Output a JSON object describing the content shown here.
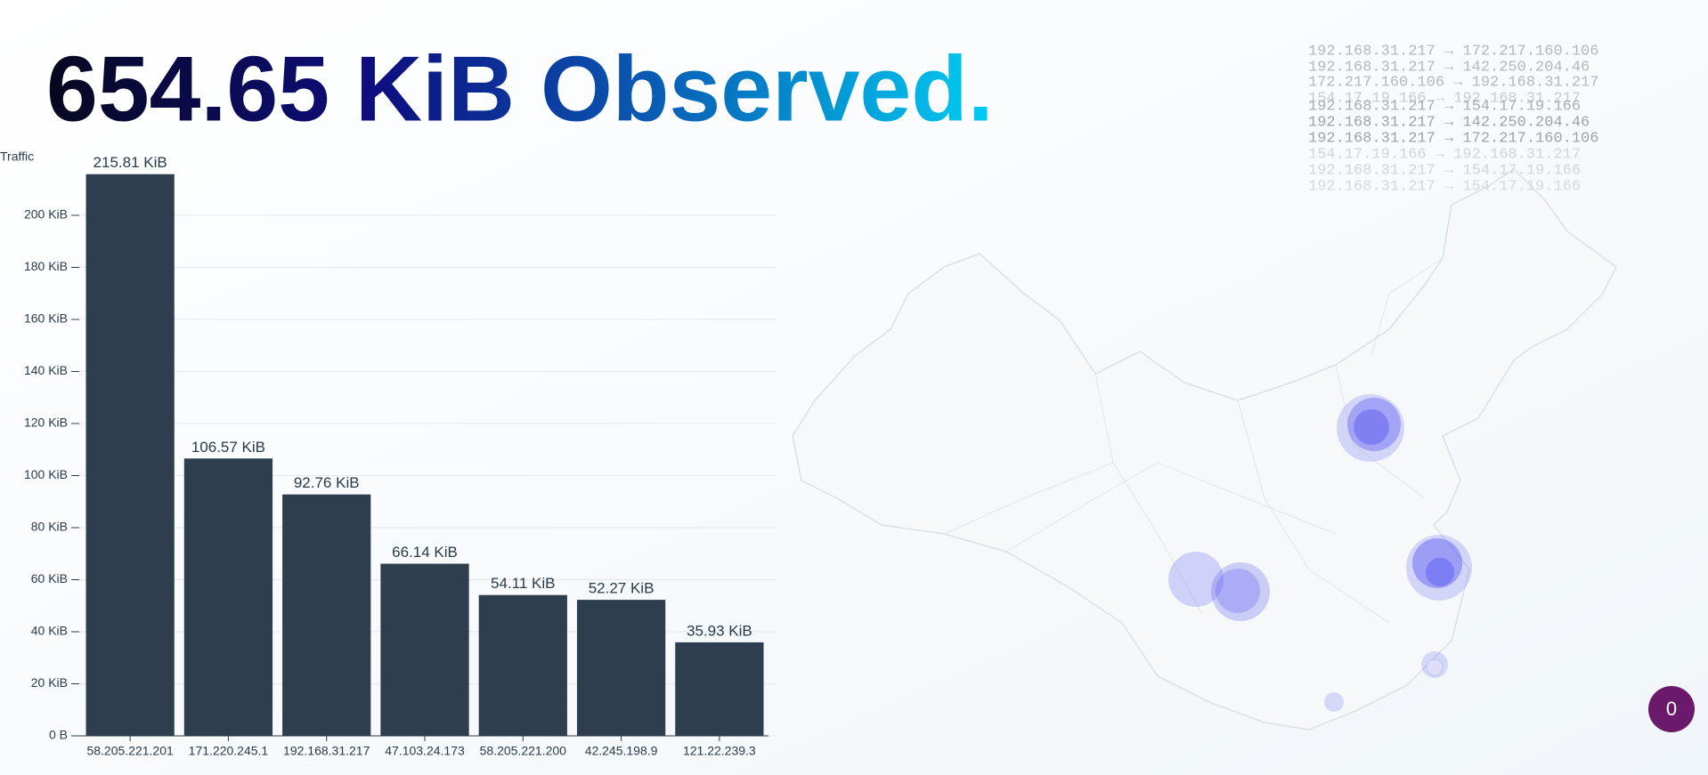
{
  "header": {
    "title": "654.65 KiB Observed."
  },
  "chart_data": {
    "type": "bar",
    "y_label": "Traffic",
    "categories": [
      "58.205.221.201",
      "171.220.245.1",
      "192.168.31.217",
      "47.103.24.173",
      "58.205.221.200",
      "42.245.198.9",
      "121.22.239.3"
    ],
    "values": [
      215.81,
      106.57,
      92.76,
      66.14,
      54.11,
      52.27,
      35.93
    ],
    "value_labels": [
      "215.81 KiB",
      "106.57 KiB",
      "92.76 KiB",
      "66.14 KiB",
      "54.11 KiB",
      "52.27 KiB",
      "35.93 KiB"
    ],
    "color": "#2b3a4a",
    "ylim": [
      0,
      220
    ],
    "yticks": [
      {
        "value": 0,
        "label": "0 B"
      },
      {
        "value": 20,
        "label": "20 KiB"
      },
      {
        "value": 40,
        "label": "40 KiB"
      },
      {
        "value": 60,
        "label": "60 KiB"
      },
      {
        "value": 80,
        "label": "80 KiB"
      },
      {
        "value": 100,
        "label": "100 KiB"
      },
      {
        "value": 120,
        "label": "120 KiB"
      },
      {
        "value": 140,
        "label": "140 KiB"
      },
      {
        "value": 160,
        "label": "160 KiB"
      },
      {
        "value": 180,
        "label": "180 KiB"
      },
      {
        "value": 200,
        "label": "200 KiB"
      }
    ],
    "grid": true
  },
  "flows": [
    "192.168.31.217 → 172.217.160.106",
    "192.168.31.217 → 142.250.204.46",
    "172.217.160.106 → 192.168.31.217",
    "154.17.19.166 → 192.168.31.217",
    "192.168.31.217 → 154.17.19.166",
    "192.168.31.217 → 142.250.204.46",
    "192.168.31.217 → 172.217.160.106",
    "154.17.19.166 → 192.168.31.217",
    "192.168.31.217 → 154.17.19.166",
    "192.168.31.217 → 154.17.19.166"
  ],
  "badge": 0
}
